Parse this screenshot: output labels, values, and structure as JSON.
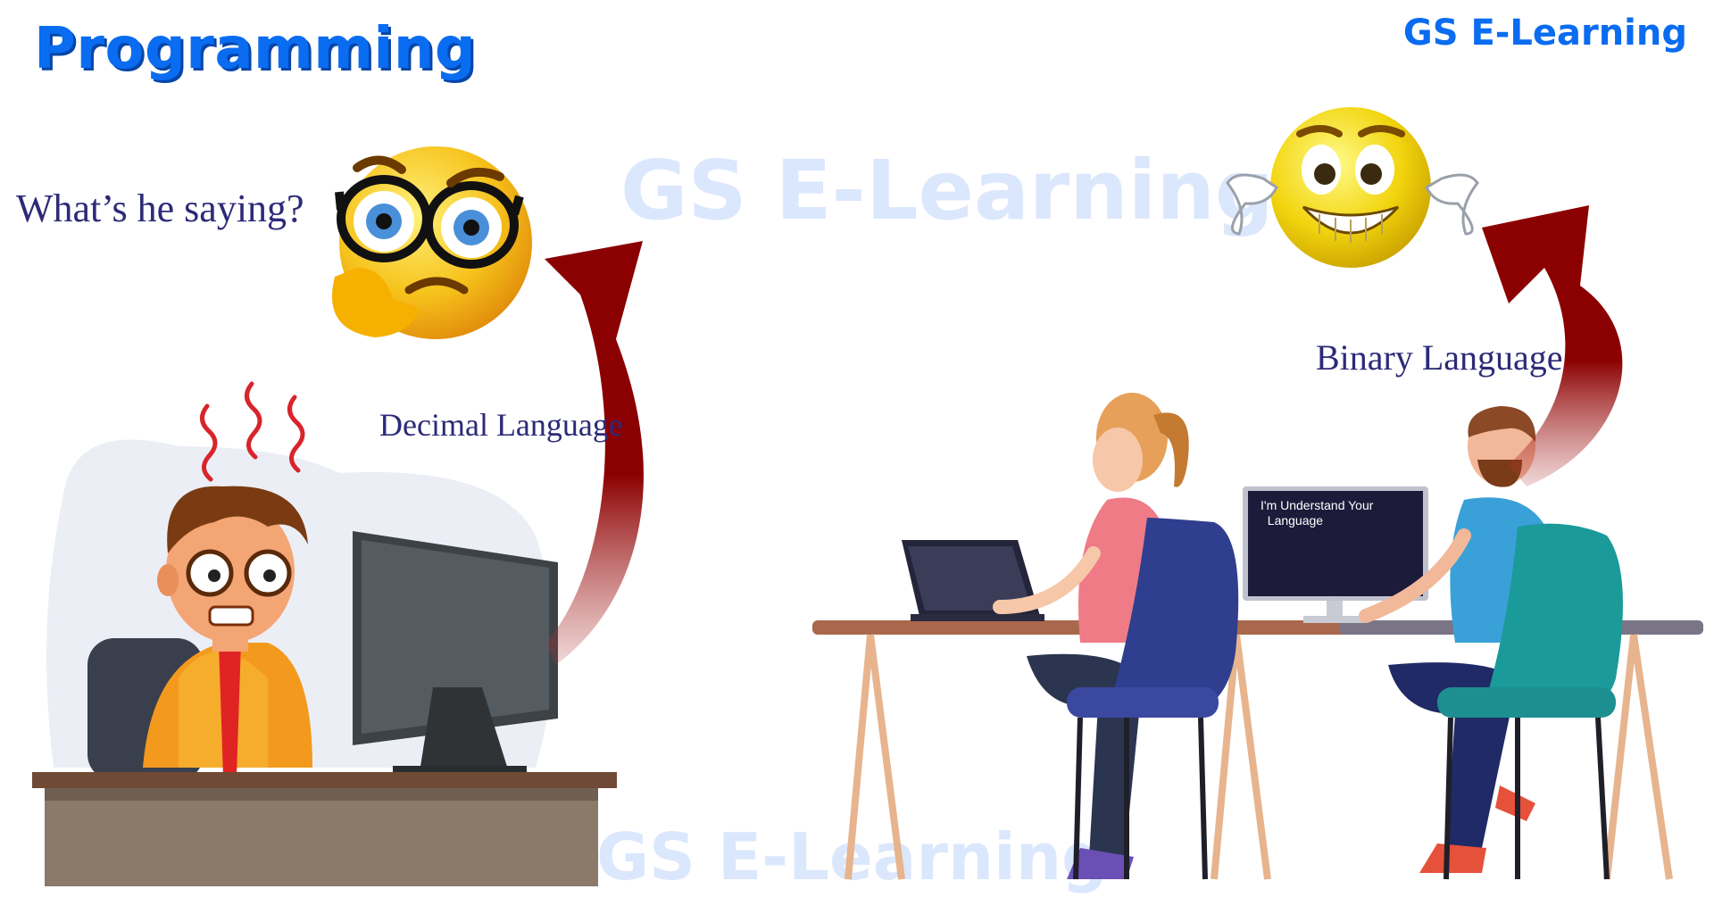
{
  "header": {
    "title": "Programming",
    "brand": "GS E-Learning"
  },
  "watermarks": [
    "GS E-Learning",
    "GS E-Learning"
  ],
  "left_scene": {
    "question": "What’s he saying?",
    "arrow_label": "Decimal Language"
  },
  "right_scene": {
    "arrow_label": "Binary Language",
    "screen_text": "I'm Understand Your\n  Language"
  },
  "colors": {
    "brand_blue": "#0a6cf0",
    "label_navy": "#2d2a78",
    "arrow_red": "#8b0000"
  }
}
